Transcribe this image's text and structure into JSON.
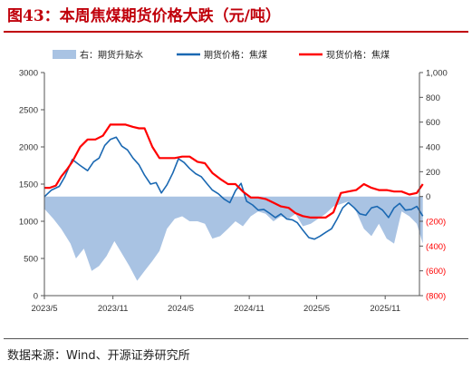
{
  "title": "图43：本周焦煤期货价格大跌（元/吨）",
  "source": "数据来源：Wind、开源证券研究所",
  "colors": {
    "basis": "#a9c3e3",
    "futures": "#1a68b2",
    "spot": "#ff0000",
    "title": "#c0000b",
    "right_axis_negative": "#ff0000"
  },
  "chart_data": {
    "type": "line",
    "title": "",
    "xlabel": "",
    "ylabel_left": "",
    "ylabel_right": "",
    "x_ticks": [
      "2023/5",
      "2023/11",
      "2024/5",
      "2024/11",
      "2025/5",
      "2025/11"
    ],
    "x_range": [
      "2023/5",
      "2026/2"
    ],
    "y_left": {
      "min": 0,
      "max": 3000,
      "ticks": [
        0,
        500,
        1000,
        1500,
        2000,
        2500,
        3000
      ]
    },
    "y_right": {
      "min": -800,
      "max": 1000,
      "ticks": [
        1000,
        800,
        600,
        400,
        200,
        0,
        -200,
        -400,
        -600,
        -800
      ],
      "tick_labels": [
        "1,000",
        "800",
        "600",
        "400",
        "200",
        "0",
        "(200)",
        "(400)",
        "(600)",
        "(800)"
      ]
    },
    "grid": false,
    "legend_position": "top",
    "series": [
      {
        "name": "右：期货升贴水",
        "type": "area",
        "axis": "right",
        "color": "#a9c3e3",
        "x": [
          "2023/05/01",
          "2023/05/25",
          "2023/06/15",
          "2023/07/10",
          "2023/07/25",
          "2023/08/15",
          "2023/09/05",
          "2023/09/25",
          "2023/10/15",
          "2023/11/05",
          "2023/11/25",
          "2023/12/15",
          "2024/01/05",
          "2024/01/25",
          "2024/02/15",
          "2024/03/05",
          "2024/03/25",
          "2024/04/15",
          "2024/05/05",
          "2024/05/25",
          "2024/06/15",
          "2024/07/05",
          "2024/07/25",
          "2024/08/15",
          "2024/09/05",
          "2024/09/25",
          "2024/10/15",
          "2024/11/05",
          "2024/11/25",
          "2024/12/15",
          "2025/01/05",
          "2025/01/25",
          "2025/02/15",
          "2025/03/05",
          "2025/03/25",
          "2025/04/15",
          "2025/05/05",
          "2025/05/25",
          "2025/06/15",
          "2025/07/05",
          "2025/07/25",
          "2025/08/15",
          "2025/09/05",
          "2025/09/25",
          "2025/10/15",
          "2025/11/05",
          "2025/11/25",
          "2025/12/15",
          "2026/01/05",
          "2026/01/25",
          "2026/02/10"
        ],
        "values": [
          -100,
          -180,
          -260,
          -380,
          -500,
          -420,
          -600,
          -560,
          -480,
          -360,
          -460,
          -560,
          -680,
          -600,
          -520,
          -440,
          -260,
          -180,
          -160,
          -200,
          -200,
          -220,
          -340,
          -320,
          -260,
          -200,
          -240,
          -160,
          -120,
          -140,
          -200,
          -160,
          -180,
          -140,
          -240,
          -220,
          -180,
          -140,
          -80,
          -60,
          -40,
          -120,
          -260,
          -320,
          -220,
          -340,
          -380,
          -120,
          -160,
          -220,
          -380
        ]
      },
      {
        "name": "期货价格：焦煤",
        "type": "line",
        "axis": "left",
        "color": "#1a68b2",
        "x": [
          "2023/05/01",
          "2023/05/20",
          "2023/06/10",
          "2023/06/25",
          "2023/07/15",
          "2023/08/05",
          "2023/08/25",
          "2023/09/10",
          "2023/09/25",
          "2023/10/10",
          "2023/10/25",
          "2023/11/10",
          "2023/11/25",
          "2023/12/10",
          "2023/12/25",
          "2024/01/10",
          "2024/01/25",
          "2024/02/10",
          "2024/02/25",
          "2024/03/10",
          "2024/03/25",
          "2024/04/10",
          "2024/04/25",
          "2024/05/10",
          "2024/05/25",
          "2024/06/10",
          "2024/06/25",
          "2024/07/10",
          "2024/07/25",
          "2024/08/10",
          "2024/08/25",
          "2024/09/10",
          "2024/09/25",
          "2024/10/10",
          "2024/10/25",
          "2024/11/10",
          "2024/11/25",
          "2024/12/10",
          "2024/12/25",
          "2025/01/10",
          "2025/01/25",
          "2025/02/10",
          "2025/02/25",
          "2025/03/10",
          "2025/03/25",
          "2025/04/10",
          "2025/04/25",
          "2025/05/10",
          "2025/05/25",
          "2025/06/10",
          "2025/06/25",
          "2025/07/10",
          "2025/07/25",
          "2025/08/10",
          "2025/08/25",
          "2025/09/10",
          "2025/09/25",
          "2025/10/10",
          "2025/10/25",
          "2025/11/10",
          "2025/11/25",
          "2025/12/10",
          "2025/12/25",
          "2026/01/10",
          "2026/01/25",
          "2026/02/10"
        ],
        "values": [
          1330,
          1420,
          1470,
          1600,
          1830,
          1750,
          1680,
          1800,
          1850,
          2020,
          2100,
          2130,
          2010,
          1960,
          1850,
          1760,
          1620,
          1500,
          1520,
          1380,
          1490,
          1650,
          1840,
          1790,
          1710,
          1640,
          1600,
          1510,
          1420,
          1370,
          1300,
          1250,
          1410,
          1510,
          1270,
          1220,
          1150,
          1160,
          1110,
          1050,
          1100,
          1030,
          1020,
          980,
          880,
          780,
          760,
          800,
          850,
          900,
          1030,
          1180,
          1250,
          1180,
          1100,
          1080,
          1180,
          1200,
          1150,
          1050,
          1180,
          1240,
          1150,
          1160,
          1200,
          1070
        ]
      },
      {
        "name": "现货价格：焦煤",
        "type": "line",
        "axis": "left",
        "color": "#ff0000",
        "x": [
          "2023/05/01",
          "2023/05/15",
          "2023/06/01",
          "2023/06/15",
          "2023/07/01",
          "2023/07/15",
          "2023/08/05",
          "2023/08/25",
          "2023/09/15",
          "2023/10/05",
          "2023/10/25",
          "2023/11/15",
          "2023/12/05",
          "2023/12/25",
          "2024/01/10",
          "2024/01/25",
          "2024/02/15",
          "2024/03/05",
          "2024/03/25",
          "2024/04/15",
          "2024/05/05",
          "2024/05/25",
          "2024/06/15",
          "2024/07/05",
          "2024/07/25",
          "2024/08/15",
          "2024/09/05",
          "2024/09/25",
          "2024/10/15",
          "2024/11/05",
          "2024/11/25",
          "2024/12/15",
          "2025/01/05",
          "2025/01/25",
          "2025/02/15",
          "2025/03/05",
          "2025/03/25",
          "2025/04/15",
          "2025/05/05",
          "2025/05/25",
          "2025/06/15",
          "2025/07/05",
          "2025/07/25",
          "2025/08/15",
          "2025/09/05",
          "2025/09/25",
          "2025/10/15",
          "2025/11/05",
          "2025/11/25",
          "2025/12/15",
          "2026/01/05",
          "2026/01/25",
          "2026/02/10"
        ],
        "values": [
          1450,
          1450,
          1480,
          1600,
          1700,
          1800,
          2000,
          2100,
          2100,
          2150,
          2300,
          2300,
          2300,
          2270,
          2250,
          2250,
          2000,
          1850,
          1850,
          1850,
          1870,
          1870,
          1800,
          1780,
          1650,
          1570,
          1500,
          1500,
          1400,
          1320,
          1320,
          1300,
          1250,
          1200,
          1180,
          1110,
          1070,
          1050,
          1050,
          1050,
          1120,
          1380,
          1400,
          1420,
          1500,
          1450,
          1420,
          1420,
          1400,
          1400,
          1360,
          1380,
          1500
        ]
      }
    ]
  }
}
